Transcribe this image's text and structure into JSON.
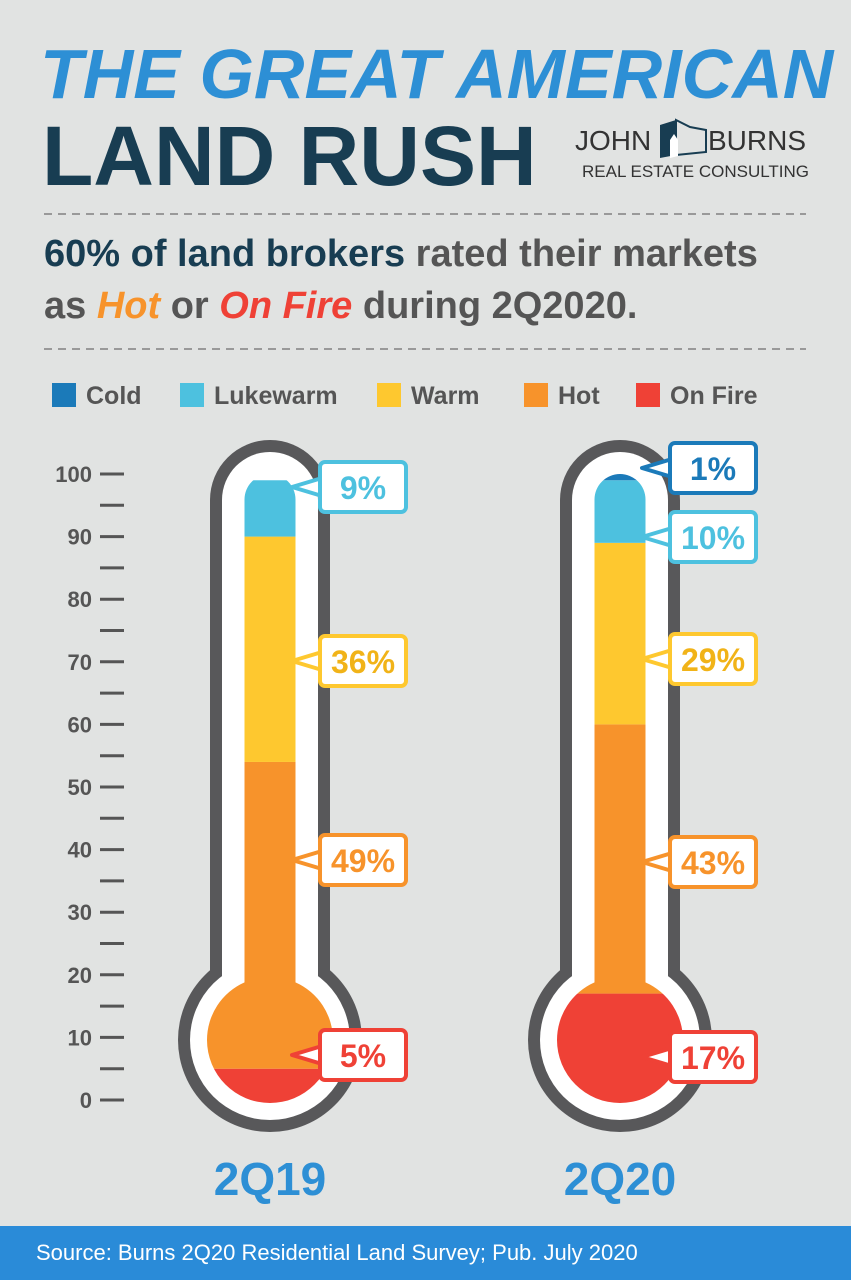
{
  "title": {
    "line1": "THE GREAT AMERICAN",
    "line2": "LAND RUSH"
  },
  "logo": {
    "name_left": "JOHN",
    "name_right": "BURNS",
    "tagline": "REAL ESTATE CONSULTING"
  },
  "headline": {
    "part1": "60% of land brokers",
    "part2": " rated their markets",
    "part3": "as ",
    "hot": "Hot",
    "part4": " or ",
    "onfire": "On Fire",
    "part5": " during 2Q2020."
  },
  "footer": "Source: Burns 2Q20 Residential Land Survey; Pub. July 2020",
  "colors": {
    "Cold": "#1b7ab9",
    "Lukewarm": "#4dc1df",
    "Warm": "#fec82f",
    "Hot": "#f7932b",
    "On Fire": "#ef4136",
    "title_blue": "#2d8fd5",
    "navy": "#183d52"
  },
  "chart_data": {
    "type": "stacked-bar (thermometer)",
    "categories": [
      "2Q19",
      "2Q20"
    ],
    "ylim": [
      0,
      100
    ],
    "yticks": [
      0,
      10,
      20,
      30,
      40,
      50,
      60,
      70,
      80,
      90,
      100
    ],
    "legend": [
      "Cold",
      "Lukewarm",
      "Warm",
      "Hot",
      "On Fire"
    ],
    "legend_position": "top",
    "series": [
      {
        "name": "On Fire",
        "values": [
          5,
          17
        ]
      },
      {
        "name": "Hot",
        "values": [
          49,
          43
        ]
      },
      {
        "name": "Warm",
        "values": [
          36,
          29
        ]
      },
      {
        "name": "Lukewarm",
        "values": [
          9,
          10
        ]
      },
      {
        "name": "Cold",
        "values": [
          0,
          1
        ]
      }
    ],
    "labels": [
      [
        "5%",
        "49%",
        "36%",
        "9%",
        ""
      ],
      [
        "17%",
        "43%",
        "29%",
        "10%",
        "1%"
      ]
    ]
  }
}
